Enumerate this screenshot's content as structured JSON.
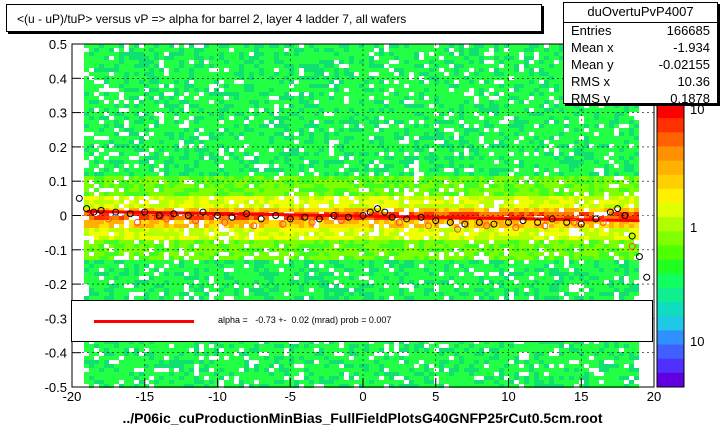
{
  "title": "<(u - uP)/tuP> versus   vP => alpha for barrel 2, layer 4 ladder 7, all wafers",
  "stats": {
    "name": "duOvertuPvP4007",
    "rows": [
      {
        "label": "Entries",
        "value": "166685"
      },
      {
        "label": "Mean x",
        "value": "-1.934"
      },
      {
        "label": "Mean y",
        "value": "-0.02155"
      },
      {
        "label": "RMS x",
        "value": "10.36"
      },
      {
        "label": "RMS y",
        "value": "0.1878"
      }
    ]
  },
  "fit": {
    "text": "alpha =   -0.73 +-  0.02 (mrad) prob = 0.007",
    "line_color": "#ff0000"
  },
  "xlabel": "../P06ic_cuProductionMinBias_FullFieldPlotsG40GNFP25rCut0.5cm.root",
  "chart_data": {
    "type": "heatmap",
    "xlim": [
      -20,
      20
    ],
    "ylim": [
      -0.5,
      0.5
    ],
    "xticks": [
      "-20",
      "-15",
      "-10",
      "-5",
      "0",
      "5",
      "10",
      "15",
      "20"
    ],
    "yticks": [
      "-0.5",
      "-0.4",
      "-0.3",
      "-0.2",
      "-0.1",
      "0",
      "0.1",
      "0.2",
      "0.3",
      "0.4",
      "0.5"
    ],
    "grid": true,
    "palette_labels": [
      "10",
      "1",
      "10"
    ],
    "fit_line": {
      "x": [
        -19,
        19
      ],
      "y": [
        0.012,
        -0.015
      ],
      "color": "#ff0000"
    },
    "profile_points": [
      {
        "x": -19.5,
        "y": 0.05
      },
      {
        "x": -19.0,
        "y": 0.02
      },
      {
        "x": -18.5,
        "y": 0.01
      },
      {
        "x": -18.0,
        "y": 0.015
      },
      {
        "x": -17.0,
        "y": 0.01
      },
      {
        "x": -16.0,
        "y": 0.005
      },
      {
        "x": -15.0,
        "y": 0.01
      },
      {
        "x": -14.0,
        "y": 0.0
      },
      {
        "x": -13.0,
        "y": 0.005
      },
      {
        "x": -12.0,
        "y": 0.0
      },
      {
        "x": -11.0,
        "y": 0.01
      },
      {
        "x": -10.0,
        "y": 0.0
      },
      {
        "x": -9.0,
        "y": -0.005
      },
      {
        "x": -8.0,
        "y": 0.005
      },
      {
        "x": -7.0,
        "y": -0.01
      },
      {
        "x": -6.0,
        "y": 0.0
      },
      {
        "x": -5.0,
        "y": -0.01
      },
      {
        "x": -4.0,
        "y": -0.005
      },
      {
        "x": -3.0,
        "y": -0.01
      },
      {
        "x": -2.0,
        "y": 0.0
      },
      {
        "x": -1.0,
        "y": -0.005
      },
      {
        "x": 0.0,
        "y": 0.0
      },
      {
        "x": 0.5,
        "y": 0.01
      },
      {
        "x": 1.0,
        "y": 0.02
      },
      {
        "x": 1.5,
        "y": 0.01
      },
      {
        "x": 2.0,
        "y": -0.005
      },
      {
        "x": 3.0,
        "y": -0.01
      },
      {
        "x": 4.0,
        "y": -0.005
      },
      {
        "x": 5.0,
        "y": -0.015
      },
      {
        "x": 6.0,
        "y": -0.02
      },
      {
        "x": 7.0,
        "y": -0.025
      },
      {
        "x": 8.0,
        "y": -0.02
      },
      {
        "x": 9.0,
        "y": -0.025
      },
      {
        "x": 10.0,
        "y": -0.02
      },
      {
        "x": 11.0,
        "y": -0.015
      },
      {
        "x": 12.0,
        "y": -0.02
      },
      {
        "x": 13.0,
        "y": -0.01
      },
      {
        "x": 14.0,
        "y": -0.02
      },
      {
        "x": 15.0,
        "y": -0.025
      },
      {
        "x": 16.0,
        "y": -0.01
      },
      {
        "x": 17.0,
        "y": 0.01
      },
      {
        "x": 17.5,
        "y": 0.02
      },
      {
        "x": 18.0,
        "y": 0.0
      },
      {
        "x": 18.5,
        "y": -0.06
      },
      {
        "x": 19.0,
        "y": -0.12
      },
      {
        "x": 19.5,
        "y": -0.18
      }
    ],
    "profile_points_red": [
      {
        "x": -17.5,
        "y": -0.01
      },
      {
        "x": -15.5,
        "y": -0.02
      },
      {
        "x": -13.5,
        "y": -0.01
      },
      {
        "x": -11.5,
        "y": -0.015
      },
      {
        "x": -9.5,
        "y": -0.02
      },
      {
        "x": -7.5,
        "y": -0.03
      },
      {
        "x": -5.5,
        "y": -0.025
      },
      {
        "x": -3.5,
        "y": -0.02
      },
      {
        "x": -1.5,
        "y": -0.015
      },
      {
        "x": 2.5,
        "y": -0.02
      },
      {
        "x": 4.5,
        "y": -0.03
      },
      {
        "x": 6.5,
        "y": -0.04
      },
      {
        "x": 8.5,
        "y": -0.03
      },
      {
        "x": 10.5,
        "y": -0.035
      },
      {
        "x": 12.5,
        "y": -0.03
      },
      {
        "x": 14.5,
        "y": -0.02
      },
      {
        "x": 16.5,
        "y": -0.02
      },
      {
        "x": 18.5,
        "y": -0.09
      }
    ]
  }
}
